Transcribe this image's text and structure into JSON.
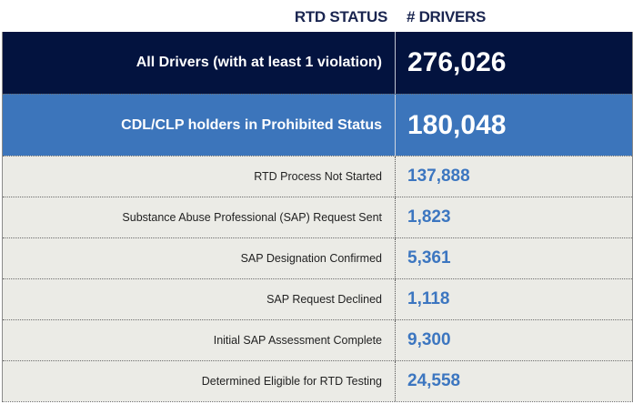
{
  "header": {
    "status_label": "RTD STATUS",
    "drivers_label": "# DRIVERS"
  },
  "colors": {
    "header_text": "#1a2550",
    "all_drivers_bg": "#03133f",
    "prohibited_bg": "#3c75bb",
    "substatus_bg": "#ebebe6",
    "substatus_value": "#3c76c0"
  },
  "rows": {
    "all_drivers": {
      "label": "All Drivers (with at least 1 violation)",
      "value": "276,026"
    },
    "prohibited": {
      "label": "CDL/CLP holders in Prohibited Status",
      "value": "180,048"
    },
    "substatus": [
      {
        "label": "RTD Process Not Started",
        "value": "137,888"
      },
      {
        "label": "Substance Abuse Professional (SAP) Request Sent",
        "value": "1,823"
      },
      {
        "label": "SAP Designation Confirmed",
        "value": "5,361"
      },
      {
        "label": "SAP Request Declined",
        "value": "1,118"
      },
      {
        "label": "Initial SAP Assessment Complete",
        "value": "9,300"
      },
      {
        "label": "Determined Eligible for RTD Testing",
        "value": "24,558"
      }
    ]
  }
}
